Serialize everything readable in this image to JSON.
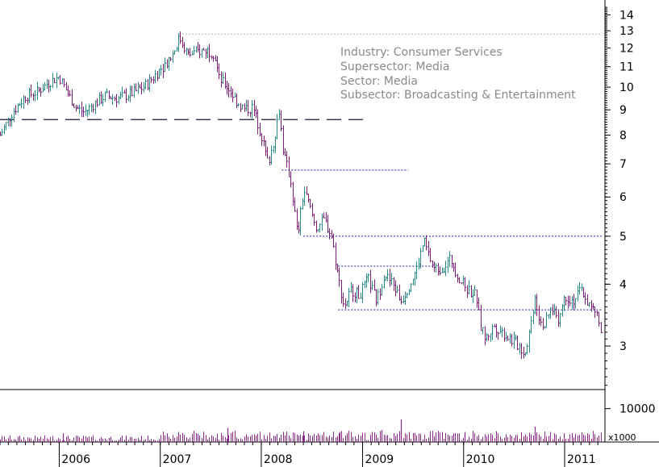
{
  "info": {
    "industry": "Industry: Consumer Services",
    "supersector": "Supersector: Media",
    "sector": "Sector: Media",
    "subsector": "Subsector: Broadcasting & Entertainment"
  },
  "colors": {
    "price_bar": "#7a1f7a",
    "price_bar_alt": "#2a8a8a",
    "volume_bar": "#8a2a8a",
    "level_line": "#1a1aa8",
    "long_dash_line": "#1a1a3a",
    "peak_line": "#b0b0b0"
  },
  "chart_data": {
    "type": "ohlc",
    "price_axis": {
      "scale": "log",
      "range": [
        2.45,
        15
      ],
      "ticks": [
        3,
        4,
        5,
        6,
        7,
        8,
        9,
        10,
        11,
        12,
        13,
        14
      ],
      "tick_labels": [
        "3",
        "4",
        "5",
        "6",
        "7",
        "8",
        "9",
        "10",
        "11",
        "12",
        "13",
        "14"
      ]
    },
    "volume_axis": {
      "unit_label": "x1000",
      "ticks": [
        10000
      ],
      "tick_labels": [
        "10000"
      ],
      "range": [
        0,
        15000
      ]
    },
    "x_axis": {
      "range": [
        "2005-06-01",
        "2011-05-15"
      ],
      "year_labels": [
        "2006",
        "2007",
        "2008",
        "2009",
        "2010",
        "2011"
      ]
    },
    "price_path": [
      [
        "2005-06-01",
        8.0
      ],
      [
        "2005-07-15",
        8.9
      ],
      [
        "2005-09-01",
        9.6
      ],
      [
        "2005-10-15",
        9.8
      ],
      [
        "2005-12-01",
        10.3
      ],
      [
        "2006-01-01",
        10.5
      ],
      [
        "2006-02-01",
        9.7
      ],
      [
        "2006-03-01",
        9.1
      ],
      [
        "2006-04-01",
        8.9
      ],
      [
        "2006-05-01",
        9.2
      ],
      [
        "2006-06-15",
        9.6
      ],
      [
        "2006-08-01",
        9.5
      ],
      [
        "2006-09-15",
        9.7
      ],
      [
        "2006-11-01",
        10.0
      ],
      [
        "2006-12-01",
        10.4
      ],
      [
        "2007-01-15",
        11.1
      ],
      [
        "2007-02-15",
        11.7
      ],
      [
        "2007-03-10",
        12.6
      ],
      [
        "2007-03-25",
        12.2
      ],
      [
        "2007-04-10",
        11.6
      ],
      [
        "2007-05-15",
        11.8
      ],
      [
        "2007-06-15",
        11.9
      ],
      [
        "2007-07-15",
        11.7
      ],
      [
        "2007-08-01",
        10.4
      ],
      [
        "2007-09-01",
        10.0
      ],
      [
        "2007-10-01",
        9.4
      ],
      [
        "2007-11-01",
        9.0
      ],
      [
        "2007-12-01",
        9.1
      ],
      [
        "2008-01-01",
        8.0
      ],
      [
        "2008-01-25",
        7.0
      ],
      [
        "2008-02-15",
        7.8
      ],
      [
        "2008-03-05",
        9.0
      ],
      [
        "2008-03-20",
        7.4
      ],
      [
        "2008-04-15",
        6.5
      ],
      [
        "2008-05-10",
        5.0
      ],
      [
        "2008-06-01",
        6.2
      ],
      [
        "2008-06-20",
        5.8
      ],
      [
        "2008-07-15",
        5.2
      ],
      [
        "2008-08-15",
        5.4
      ],
      [
        "2008-09-10",
        5.0
      ],
      [
        "2008-10-05",
        4.1
      ],
      [
        "2008-10-25",
        3.6
      ],
      [
        "2008-11-20",
        3.9
      ],
      [
        "2008-12-20",
        3.8
      ],
      [
        "2009-01-20",
        4.1
      ],
      [
        "2009-02-20",
        3.7
      ],
      [
        "2009-03-20",
        4.2
      ],
      [
        "2009-04-20",
        4.0
      ],
      [
        "2009-05-20",
        3.7
      ],
      [
        "2009-06-20",
        4.0
      ],
      [
        "2009-07-15",
        4.3
      ],
      [
        "2009-08-10",
        4.9
      ],
      [
        "2009-08-25",
        4.6
      ],
      [
        "2009-09-15",
        4.3
      ],
      [
        "2009-10-15",
        4.3
      ],
      [
        "2009-11-15",
        4.5
      ],
      [
        "2009-12-15",
        4.1
      ],
      [
        "2010-01-15",
        3.9
      ],
      [
        "2010-02-15",
        3.8
      ],
      [
        "2010-03-01",
        3.3
      ],
      [
        "2010-03-20",
        3.1
      ],
      [
        "2010-04-20",
        3.3
      ],
      [
        "2010-05-20",
        3.2
      ],
      [
        "2010-06-20",
        3.1
      ],
      [
        "2010-07-20",
        3.0
      ],
      [
        "2010-08-10",
        2.9
      ],
      [
        "2010-08-30",
        3.3
      ],
      [
        "2010-09-15",
        3.8
      ],
      [
        "2010-10-01",
        3.4
      ],
      [
        "2010-10-20",
        3.3
      ],
      [
        "2010-11-15",
        3.6
      ],
      [
        "2010-12-10",
        3.4
      ],
      [
        "2011-01-01",
        3.8
      ],
      [
        "2011-02-01",
        3.7
      ],
      [
        "2011-03-01",
        3.9
      ],
      [
        "2011-04-01",
        3.6
      ],
      [
        "2011-04-25",
        3.5
      ],
      [
        "2011-05-10",
        3.2
      ]
    ],
    "volume_spikes": [
      [
        "2007-09-01",
        4200
      ],
      [
        "2008-06-01",
        3200
      ],
      [
        "2009-05-20",
        6800
      ],
      [
        "2009-03-10",
        3600
      ],
      [
        "2010-09-15",
        4600
      ],
      [
        "2008-10-10",
        3000
      ],
      [
        "2010-01-05",
        3000
      ],
      [
        "2006-01-15",
        2600
      ]
    ],
    "reference_lines": [
      {
        "style": "long-dash",
        "price": 8.6,
        "from": "2005-06-01",
        "to": "2009-01-15"
      },
      {
        "style": "dotted",
        "price": 6.8,
        "from": "2008-03-15",
        "to": "2009-06-15"
      },
      {
        "style": "dotted",
        "price": 5.0,
        "from": "2008-06-01",
        "to": "2011-05-15"
      },
      {
        "style": "dotted",
        "price": 4.35,
        "from": "2008-10-05",
        "to": "2009-09-15"
      },
      {
        "style": "dotted",
        "price": 3.55,
        "from": "2008-10-05",
        "to": "2011-05-15"
      },
      {
        "style": "dotted-grey",
        "price": 12.8,
        "from": "2007-03-10",
        "to": "2011-05-15"
      }
    ]
  }
}
